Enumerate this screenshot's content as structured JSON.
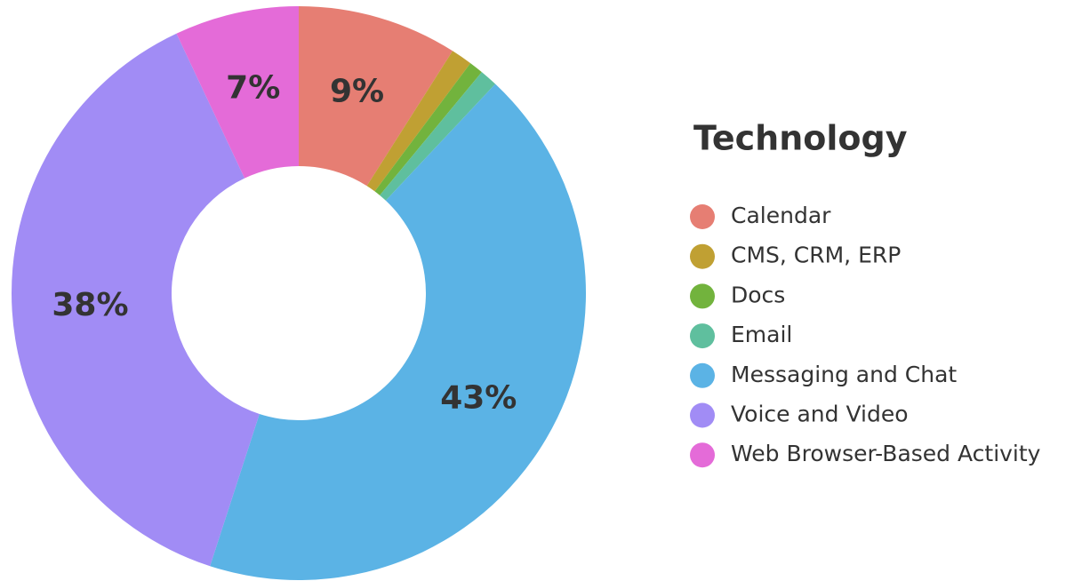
{
  "chart_data": {
    "type": "donut",
    "legend_title": "Technology",
    "categories": [
      "Calendar",
      "CMS, CRM, ERP",
      "Docs",
      "Email",
      "Messaging and Chat",
      "Voice and Video",
      "Web Browser-Based Activity"
    ],
    "values": [
      9,
      1.2,
      0.8,
      1,
      43,
      38,
      7
    ],
    "value_labels": [
      "9%",
      null,
      null,
      null,
      "43%",
      "38%",
      "7%"
    ],
    "colors": [
      "#e67e73",
      "#c0a033",
      "#72b33d",
      "#5fbf9e",
      "#5bb3e5",
      "#a18cf5",
      "#e46bd8"
    ],
    "legend": "right"
  }
}
